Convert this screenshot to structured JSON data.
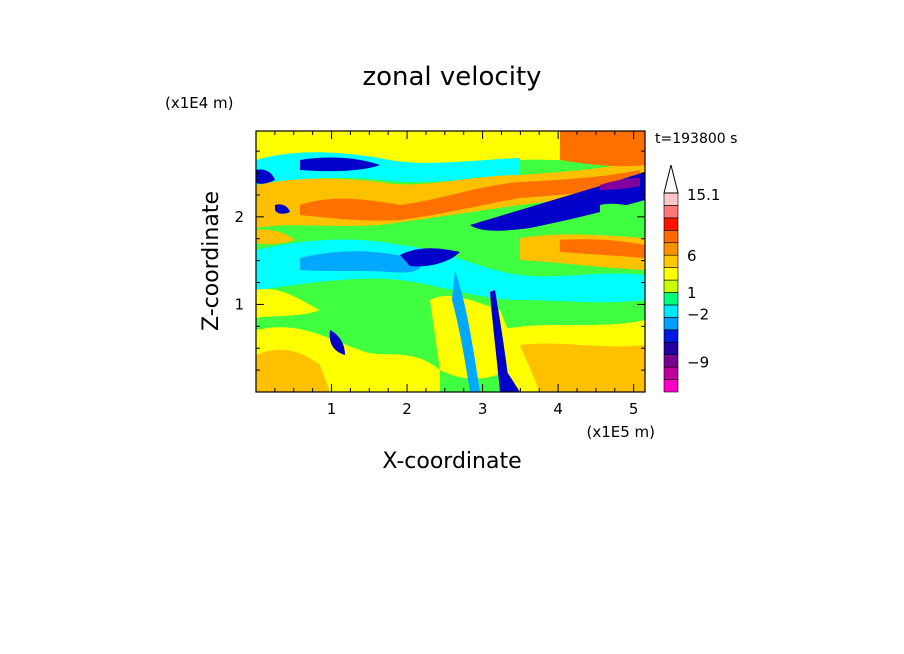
{
  "chart_data": {
    "type": "heatmap",
    "title": "zonal velocity",
    "xlabel": "X-coordinate",
    "ylabel": "Z-coordinate",
    "x_unit": "(x1E5 m)",
    "y_unit": "(x1E4 m)",
    "time_label": "t=193800 s",
    "xlim": [
      0,
      5.15
    ],
    "ylim": [
      0,
      2.98
    ],
    "xticks": [
      "1",
      "2",
      "3",
      "4",
      "5"
    ],
    "yticks": [
      "1",
      "2"
    ],
    "colorbar": {
      "labels": [
        "15.1",
        "6",
        "1",
        "-2",
        "-9"
      ],
      "max_label": "15.1",
      "levels": [
        {
          "color": "#ff00c8"
        },
        {
          "color": "#c0009a"
        },
        {
          "color": "#7a0090"
        },
        {
          "color": "#2000a0"
        },
        {
          "color": "#0018e0"
        },
        {
          "color": "#00a0ff"
        },
        {
          "color": "#00e8ff"
        },
        {
          "color": "#00ff78"
        },
        {
          "color": "#c8ff00"
        },
        {
          "color": "#ffff00"
        },
        {
          "color": "#ffc800"
        },
        {
          "color": "#ff9000"
        },
        {
          "color": "#ff6a00"
        },
        {
          "color": "#ff1400"
        },
        {
          "color": "#ff7878"
        },
        {
          "color": "#ffc8c8"
        }
      ]
    },
    "field_colors": {
      "strong_negative": "#0000c8",
      "negative": "#00a8ff",
      "slight_negative": "#00ffff",
      "neutral": "#40ff40",
      "slight_positive": "#ffff00",
      "positive": "#ffc000",
      "strong_positive": "#ff7000",
      "extreme_negative": "#8000a0"
    }
  }
}
